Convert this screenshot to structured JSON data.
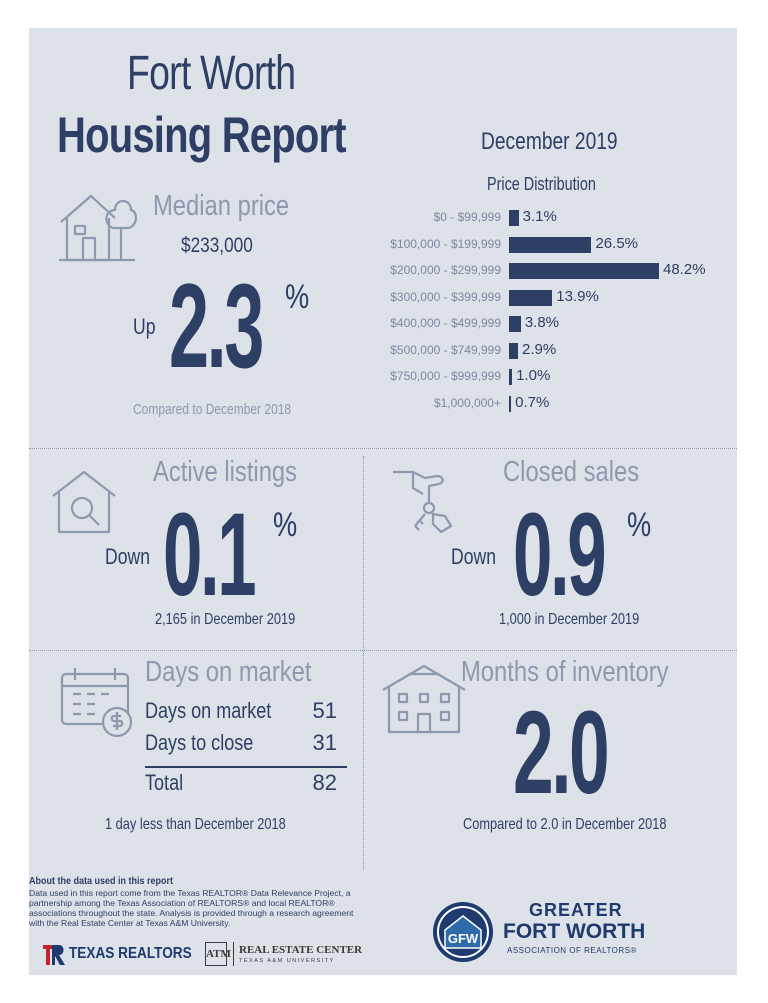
{
  "title": {
    "line1": "Fort Worth",
    "line2": "Housing Report"
  },
  "period": "December 2019",
  "median": {
    "title": "Median price",
    "value": "$233,000",
    "direction": "Up",
    "change": "2.3",
    "unit": "%",
    "comparison": "Compared to December 2018"
  },
  "distribution": {
    "title": "Price Distribution",
    "chart_data": {
      "type": "bar",
      "title": "Price Distribution",
      "categories": [
        "$0 - $99,999",
        "$100,000 - $199,999",
        "$200,000 - $299,999",
        "$300,000 - $399,999",
        "$400,000 - $499,999",
        "$500,000 - $749,999",
        "$750,000 - $999,999",
        "$1,000,000+"
      ],
      "values": [
        3.1,
        26.5,
        48.2,
        13.9,
        3.8,
        2.9,
        1.0,
        0.7
      ],
      "labels": [
        "3.1%",
        "26.5%",
        "48.2%",
        "13.9%",
        "3.8%",
        "2.9%",
        "1.0%",
        "0.7%"
      ],
      "orientation": "horizontal",
      "xlim": [
        0,
        48.2
      ]
    }
  },
  "active": {
    "title": "Active listings",
    "direction": "Down",
    "change": "0.1",
    "unit": "%",
    "detail": "2,165 in December 2019"
  },
  "closed": {
    "title": "Closed sales",
    "direction": "Down",
    "change": "0.9",
    "unit": "%",
    "detail": "1,000 in December 2019"
  },
  "dom": {
    "title": "Days on market",
    "rows": [
      {
        "label": "Days on market",
        "value": "51"
      },
      {
        "label": "Days to close",
        "value": "31"
      },
      {
        "label": "Total",
        "value": "82"
      }
    ],
    "note": "1 day less than December 2018"
  },
  "inventory": {
    "title": "Months of inventory",
    "value": "2.0",
    "comparison": "Compared to 2.0 in December 2018"
  },
  "footer": {
    "about_heading": "About the data used in this report",
    "about_body": "Data used in this report come from the Texas REALTOR® Data Relevance Project, a partnership among the Texas Association of REALTORS® and local REALTOR® associations throughout the state. Analysis is provided through a research agreement with the Real Estate Center at Texas A&M University.",
    "texas_realtors": "TEXAS REALTORS",
    "real_estate_center": "REAL ESTATE CENTER",
    "tamu": "TEXAS A&M UNIVERSITY",
    "gfw_line1": "GREATER",
    "gfw_line2": "FORT WORTH",
    "gfw_line3": "ASSOCIATION OF REALTORS®",
    "gfw_mono": "GFW"
  },
  "colors": {
    "navy": "#2e3f66",
    "muted": "#8d9aae",
    "panel": "#dde1e8"
  }
}
